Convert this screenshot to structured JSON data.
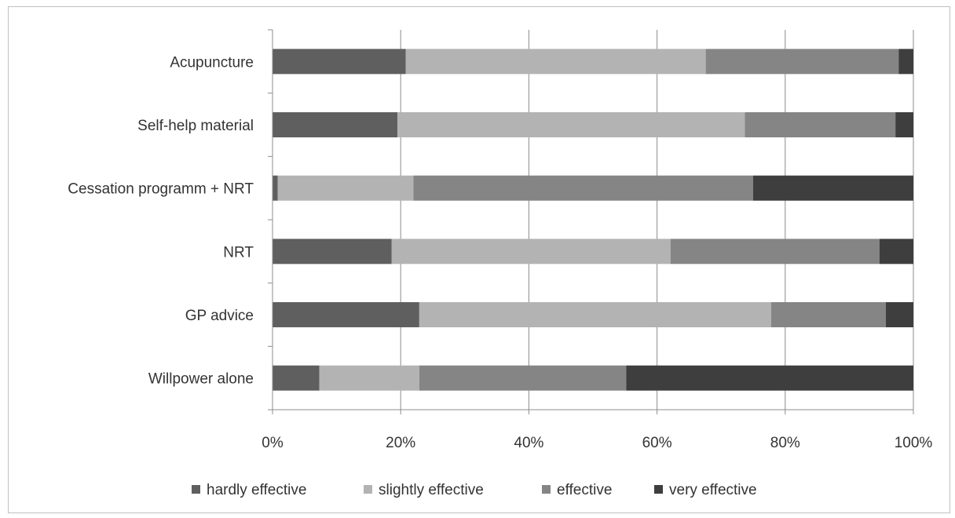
{
  "chart_data": {
    "type": "bar",
    "orientation": "horizontal",
    "stacked": "percent",
    "categories": [
      "Acupuncture",
      "Self-help material",
      "Cessation programm + NRT",
      "NRT",
      "GP advice",
      "Willpower alone"
    ],
    "series": [
      {
        "name": "hardly effective",
        "color": "#5f5f5f",
        "values": [
          20.8,
          19.5,
          0.8,
          18.6,
          22.9,
          7.3
        ]
      },
      {
        "name": "slightly effective",
        "color": "#b3b3b3",
        "values": [
          46.8,
          54.2,
          21.2,
          43.5,
          54.9,
          15.6
        ]
      },
      {
        "name": "effective",
        "color": "#858585",
        "values": [
          30.1,
          23.5,
          53.0,
          32.6,
          17.9,
          32.3
        ]
      },
      {
        "name": "very effective",
        "color": "#3e3e3e",
        "values": [
          2.3,
          2.8,
          25.0,
          5.3,
          4.3,
          44.8
        ]
      }
    ],
    "x_ticks": [
      "0%",
      "20%",
      "40%",
      "60%",
      "80%",
      "100%"
    ],
    "xlim": [
      0,
      100
    ],
    "grid": "vertical",
    "legend_position": "bottom"
  }
}
